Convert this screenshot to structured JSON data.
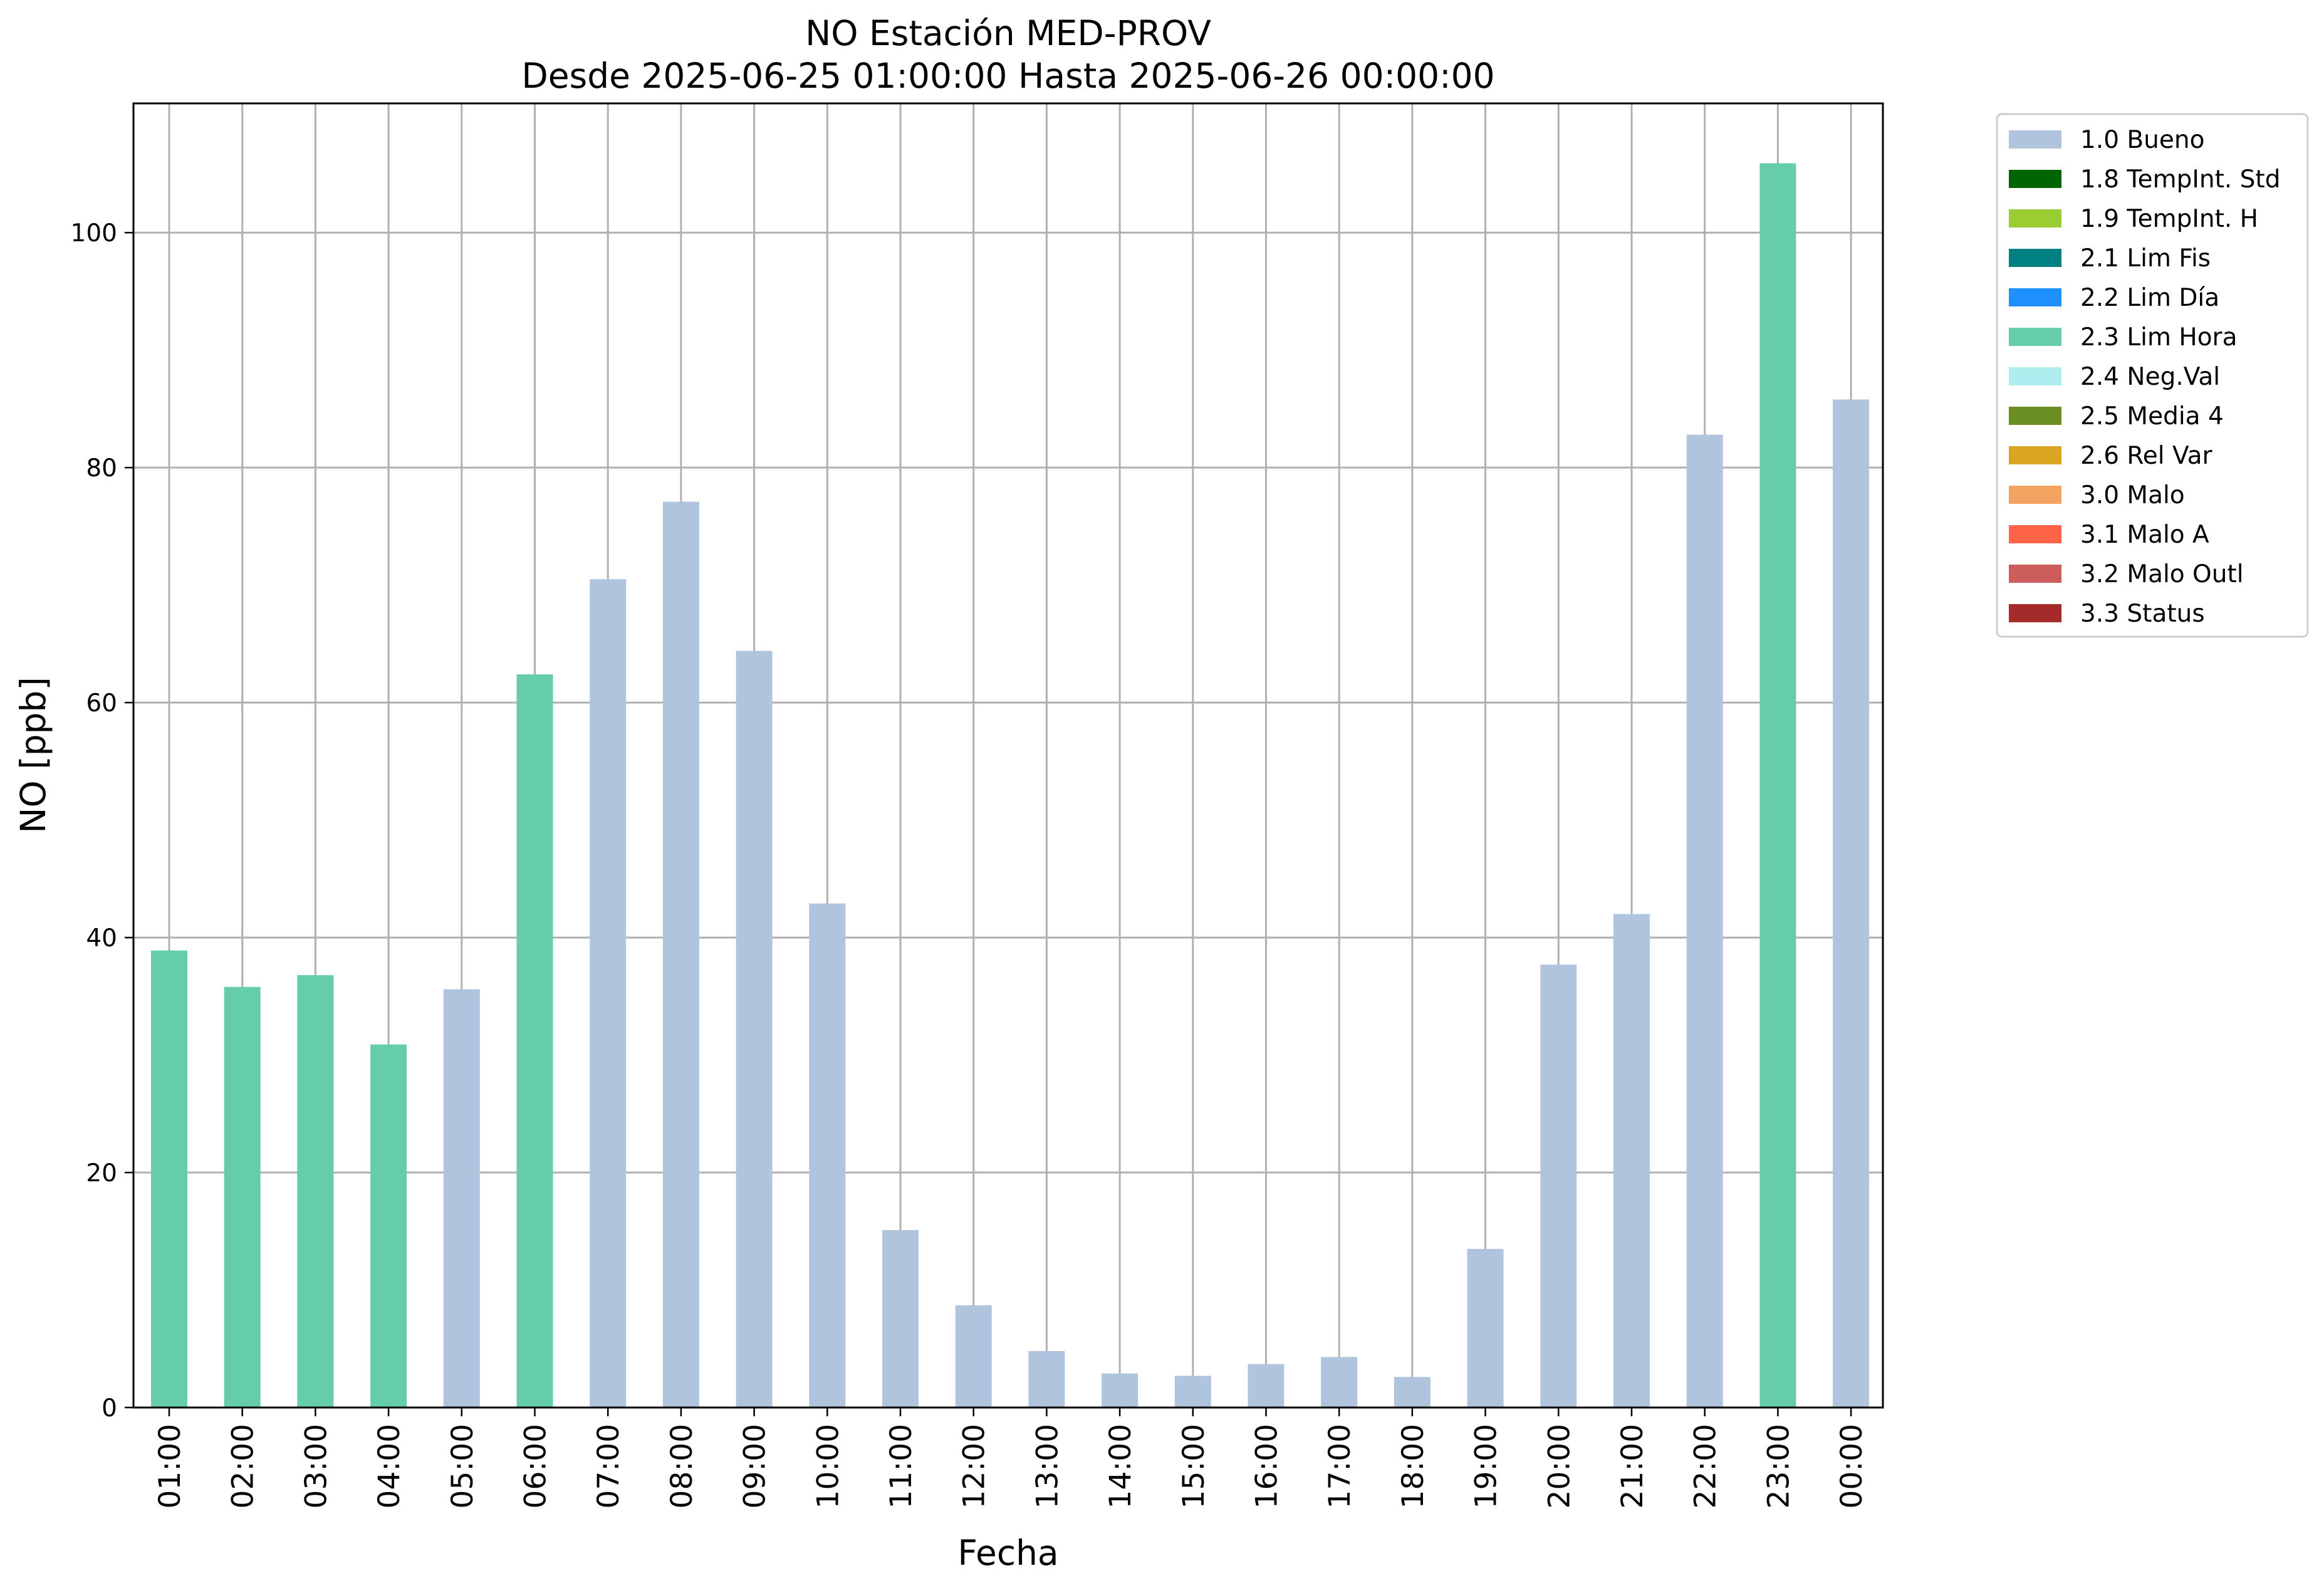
{
  "chart_data": {
    "type": "bar",
    "title": "NO Estación MED-PROV",
    "subtitle": "Desde 2025-06-25 01:00:00 Hasta 2025-06-26 00:00:00",
    "xlabel": "Fecha",
    "ylabel": "NO [ppb]",
    "ylim": [
      0,
      111
    ],
    "yticks": [
      0,
      20,
      40,
      60,
      80,
      100
    ],
    "grid": true,
    "legend_position": "outside-top-right",
    "categories": [
      "01:00",
      "02:00",
      "03:00",
      "04:00",
      "05:00",
      "06:00",
      "07:00",
      "08:00",
      "09:00",
      "10:00",
      "11:00",
      "12:00",
      "13:00",
      "14:00",
      "15:00",
      "16:00",
      "17:00",
      "18:00",
      "19:00",
      "20:00",
      "21:00",
      "22:00",
      "23:00",
      "00:00"
    ],
    "values": [
      38.9,
      35.8,
      36.8,
      30.9,
      35.6,
      62.4,
      70.5,
      77.1,
      64.4,
      42.9,
      15.1,
      8.7,
      4.8,
      2.9,
      2.7,
      3.7,
      4.3,
      2.6,
      13.5,
      37.7,
      42.0,
      82.8,
      105.9,
      85.8
    ],
    "flags": [
      "2.3 Lim Hora",
      "2.3 Lim Hora",
      "2.3 Lim Hora",
      "2.3 Lim Hora",
      "1.0 Bueno",
      "2.3 Lim Hora",
      "1.0 Bueno",
      "1.0 Bueno",
      "1.0 Bueno",
      "1.0 Bueno",
      "1.0 Bueno",
      "1.0 Bueno",
      "1.0 Bueno",
      "1.0 Bueno",
      "1.0 Bueno",
      "1.0 Bueno",
      "1.0 Bueno",
      "1.0 Bueno",
      "1.0 Bueno",
      "1.0 Bueno",
      "1.0 Bueno",
      "1.0 Bueno",
      "2.3 Lim Hora",
      "1.0 Bueno"
    ],
    "legend": [
      {
        "label": "1.0 Bueno",
        "color": "#b0c4de"
      },
      {
        "label": "1.8 TempInt. Std",
        "color": "#006400"
      },
      {
        "label": "1.9 TempInt. H",
        "color": "#9acd32"
      },
      {
        "label": "2.1 Lim Fis",
        "color": "#008080"
      },
      {
        "label": "2.2 Lim Día",
        "color": "#1e90ff"
      },
      {
        "label": "2.3 Lim Hora",
        "color": "#66cdaa"
      },
      {
        "label": "2.4 Neg.Val",
        "color": "#afeeee"
      },
      {
        "label": "2.5 Media 4",
        "color": "#6b8e23"
      },
      {
        "label": "2.6 Rel Var",
        "color": "#daa520"
      },
      {
        "label": "3.0 Malo",
        "color": "#f4a460"
      },
      {
        "label": "3.1 Malo A",
        "color": "#ff6347"
      },
      {
        "label": "3.2 Malo Outl",
        "color": "#cd5c5c"
      },
      {
        "label": "3.3 Status",
        "color": "#a52a2a"
      }
    ]
  }
}
